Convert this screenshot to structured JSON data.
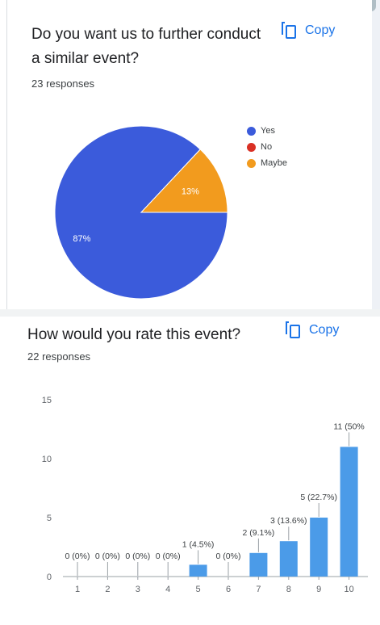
{
  "question1": {
    "title": "Do you want us to further conduct a similar event?",
    "responses_label": "23 responses",
    "copy_label": "Copy"
  },
  "question2": {
    "title": "How would you rate this event?",
    "responses_label": "22 responses",
    "copy_label": "Copy"
  },
  "icons": {
    "copy": "copy-icon"
  },
  "colors": {
    "accent": "#1a73e8",
    "pie_yes": "#3b5bdb",
    "pie_no": "#d93025",
    "pie_maybe": "#f29b1e",
    "bar": "#4b9be8"
  },
  "chart_data": [
    {
      "type": "pie",
      "slices": [
        {
          "label": "Yes",
          "percent": 87,
          "display": "87%"
        },
        {
          "label": "No",
          "percent": 0,
          "display": ""
        },
        {
          "label": "Maybe",
          "percent": 13,
          "display": "13%"
        }
      ],
      "legend": [
        "Yes",
        "No",
        "Maybe"
      ],
      "legend_position": "right"
    },
    {
      "type": "bar",
      "categories": [
        "1",
        "2",
        "3",
        "4",
        "5",
        "6",
        "7",
        "8",
        "9",
        "10"
      ],
      "values": [
        0,
        0,
        0,
        0,
        1,
        0,
        2,
        3,
        5,
        11
      ],
      "data_labels": [
        "0 (0%)",
        "0 (0%)",
        "0 (0%)",
        "0 (0%)",
        "1 (4.5%)",
        "0 (0%)",
        "2 (9.1%)",
        "3 (13.6%)",
        "5 (22.7%)",
        "11 (50%"
      ],
      "yticks": [
        0,
        5,
        10,
        15
      ],
      "ylim": [
        0,
        15
      ],
      "grid": false
    }
  ]
}
